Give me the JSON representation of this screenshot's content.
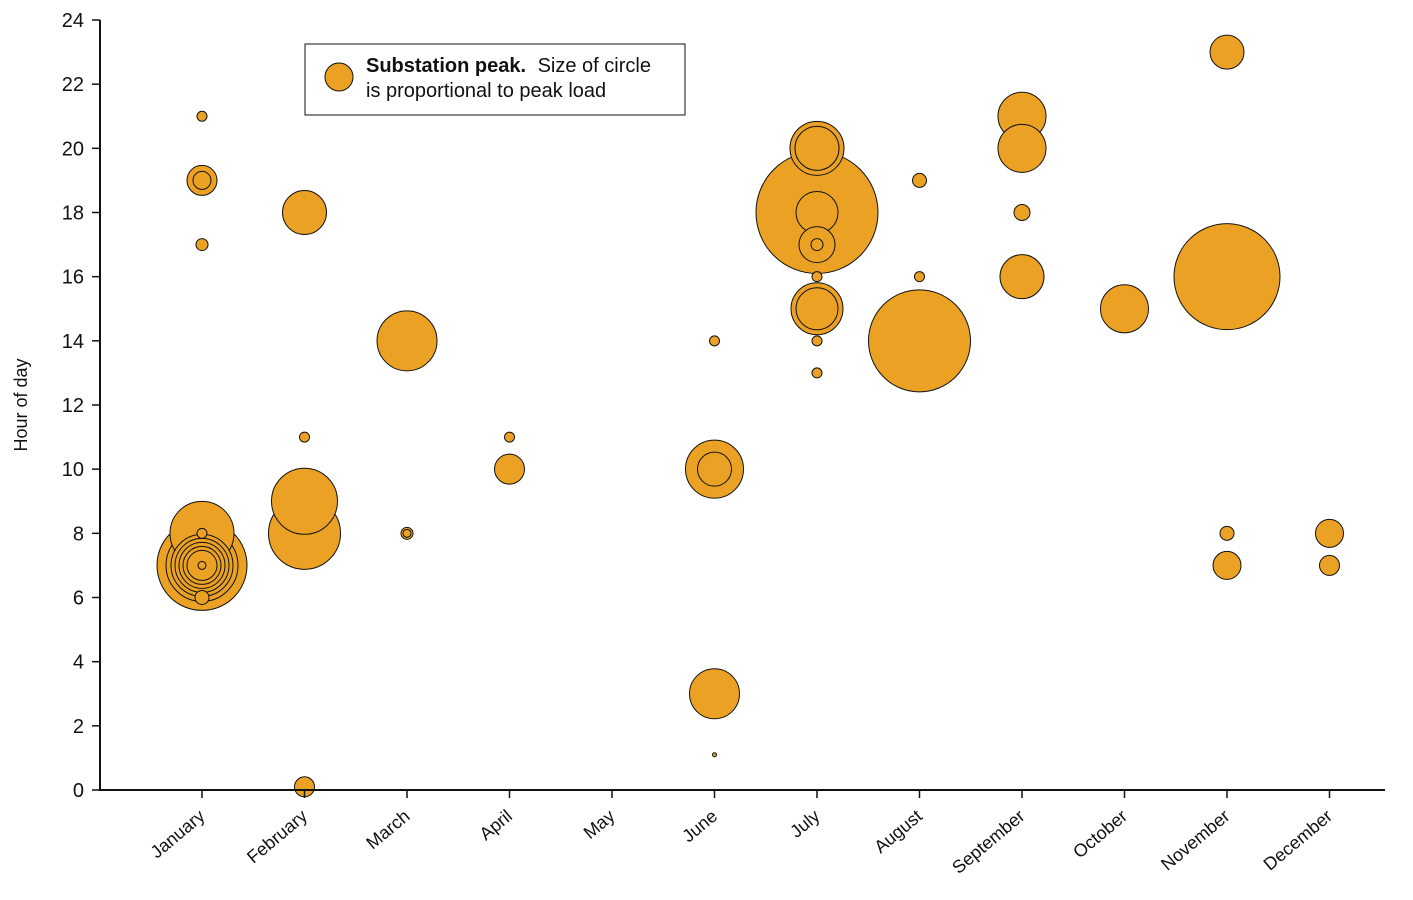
{
  "chart_data": {
    "type": "scatter",
    "title": "",
    "xlabel": "",
    "ylabel": "Hour of day",
    "categories": [
      "January",
      "February",
      "March",
      "April",
      "May",
      "June",
      "July",
      "August",
      "September",
      "October",
      "November",
      "December"
    ],
    "ylim": [
      0,
      24
    ],
    "yticks": [
      0,
      2,
      4,
      6,
      8,
      10,
      12,
      14,
      16,
      18,
      20,
      22,
      24
    ],
    "grid": false,
    "legend_position": "top-left",
    "legend": {
      "title": "Substation peak.",
      "text_line1": "Size of circle",
      "text_line2": "is proportional to peak load"
    },
    "color": "#EBA224",
    "stroke_color": "#111111",
    "series": [
      {
        "points": [
          {
            "month": "January",
            "hour": 21,
            "size": 5
          },
          {
            "month": "January",
            "hour": 19,
            "size": 15
          },
          {
            "month": "January",
            "hour": 19,
            "size": 9
          },
          {
            "month": "January",
            "hour": 17,
            "size": 6
          },
          {
            "month": "January",
            "hour": 8,
            "size": 32
          },
          {
            "month": "January",
            "hour": 8,
            "size": 5
          },
          {
            "month": "January",
            "hour": 7,
            "size": 45
          },
          {
            "month": "January",
            "hour": 7,
            "size": 36
          },
          {
            "month": "January",
            "hour": 7,
            "size": 31
          },
          {
            "month": "January",
            "hour": 7,
            "size": 27
          },
          {
            "month": "January",
            "hour": 7,
            "size": 23
          },
          {
            "month": "January",
            "hour": 7,
            "size": 19
          },
          {
            "month": "January",
            "hour": 7,
            "size": 15
          },
          {
            "month": "January",
            "hour": 7,
            "size": 4
          },
          {
            "month": "January",
            "hour": 6,
            "size": 7
          },
          {
            "month": "February",
            "hour": 18,
            "size": 22
          },
          {
            "month": "February",
            "hour": 11,
            "size": 5
          },
          {
            "month": "February",
            "hour": 9,
            "size": 33
          },
          {
            "month": "February",
            "hour": 8,
            "size": 36
          },
          {
            "month": "February",
            "hour": 0.1,
            "size": 10
          },
          {
            "month": "March",
            "hour": 14,
            "size": 30
          },
          {
            "month": "March",
            "hour": 8,
            "size": 6
          },
          {
            "month": "March",
            "hour": 8,
            "size": 4
          },
          {
            "month": "April",
            "hour": 11,
            "size": 5
          },
          {
            "month": "April",
            "hour": 10,
            "size": 15
          },
          {
            "month": "June",
            "hour": 14,
            "size": 5
          },
          {
            "month": "June",
            "hour": 10,
            "size": 29
          },
          {
            "month": "June",
            "hour": 10,
            "size": 17
          },
          {
            "month": "June",
            "hour": 3,
            "size": 25
          },
          {
            "month": "June",
            "hour": 1.1,
            "size": 2
          },
          {
            "month": "July",
            "hour": 20,
            "size": 27
          },
          {
            "month": "July",
            "hour": 20,
            "size": 22
          },
          {
            "month": "July",
            "hour": 18,
            "size": 61
          },
          {
            "month": "July",
            "hour": 18,
            "size": 21
          },
          {
            "month": "July",
            "hour": 17,
            "size": 18
          },
          {
            "month": "July",
            "hour": 17,
            "size": 6
          },
          {
            "month": "July",
            "hour": 16,
            "size": 5
          },
          {
            "month": "July",
            "hour": 15,
            "size": 26
          },
          {
            "month": "July",
            "hour": 15,
            "size": 21
          },
          {
            "month": "July",
            "hour": 14,
            "size": 5
          },
          {
            "month": "July",
            "hour": 13,
            "size": 5
          },
          {
            "month": "August",
            "hour": 19,
            "size": 7
          },
          {
            "month": "August",
            "hour": 16,
            "size": 5
          },
          {
            "month": "August",
            "hour": 14,
            "size": 51
          },
          {
            "month": "September",
            "hour": 21,
            "size": 24
          },
          {
            "month": "September",
            "hour": 20,
            "size": 24
          },
          {
            "month": "September",
            "hour": 18,
            "size": 8
          },
          {
            "month": "September",
            "hour": 16,
            "size": 22
          },
          {
            "month": "October",
            "hour": 15,
            "size": 24
          },
          {
            "month": "November",
            "hour": 23,
            "size": 17
          },
          {
            "month": "November",
            "hour": 16,
            "size": 53
          },
          {
            "month": "November",
            "hour": 8,
            "size": 7
          },
          {
            "month": "November",
            "hour": 7,
            "size": 14
          },
          {
            "month": "December",
            "hour": 8,
            "size": 14
          },
          {
            "month": "December",
            "hour": 7,
            "size": 10
          }
        ]
      }
    ]
  }
}
